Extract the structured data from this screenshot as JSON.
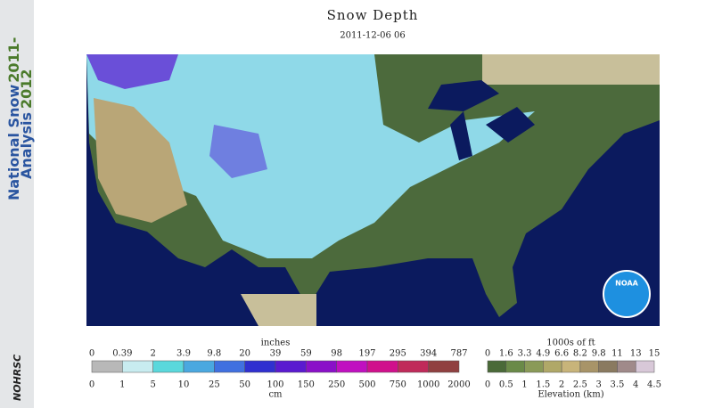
{
  "header": {
    "title": "Snow Depth",
    "subtitle": "2011-12-06 06"
  },
  "banner": {
    "line1": "National Snow",
    "year1": "2011-",
    "line2": "Analysis",
    "year2": "2012",
    "logo": "NOHRSC"
  },
  "map": {
    "logo": "NOAA"
  },
  "snow_legend": {
    "top_unit": "inches",
    "top_labels": [
      "0",
      "0.39",
      "2",
      "3.9",
      "9.8",
      "20",
      "39",
      "59",
      "98",
      "197",
      "295",
      "394",
      "787"
    ],
    "bottom_labels": [
      "0",
      "1",
      "5",
      "10",
      "25",
      "50",
      "100",
      "150",
      "250",
      "500",
      "750",
      "1000",
      "2000"
    ],
    "bottom_unit": "cm"
  },
  "elevation_legend": {
    "top_unit": "1000s of ft",
    "top_labels": [
      "0",
      "1.6",
      "3.3",
      "4.9",
      "6.6",
      "8.2",
      "9.8",
      "11",
      "13",
      "15"
    ],
    "bottom_labels": [
      "0",
      "0.5",
      "1",
      "1.5",
      "2",
      "2.5",
      "3",
      "3.5",
      "4",
      "4.5"
    ],
    "bottom_unit": "Elevation (km)"
  }
}
